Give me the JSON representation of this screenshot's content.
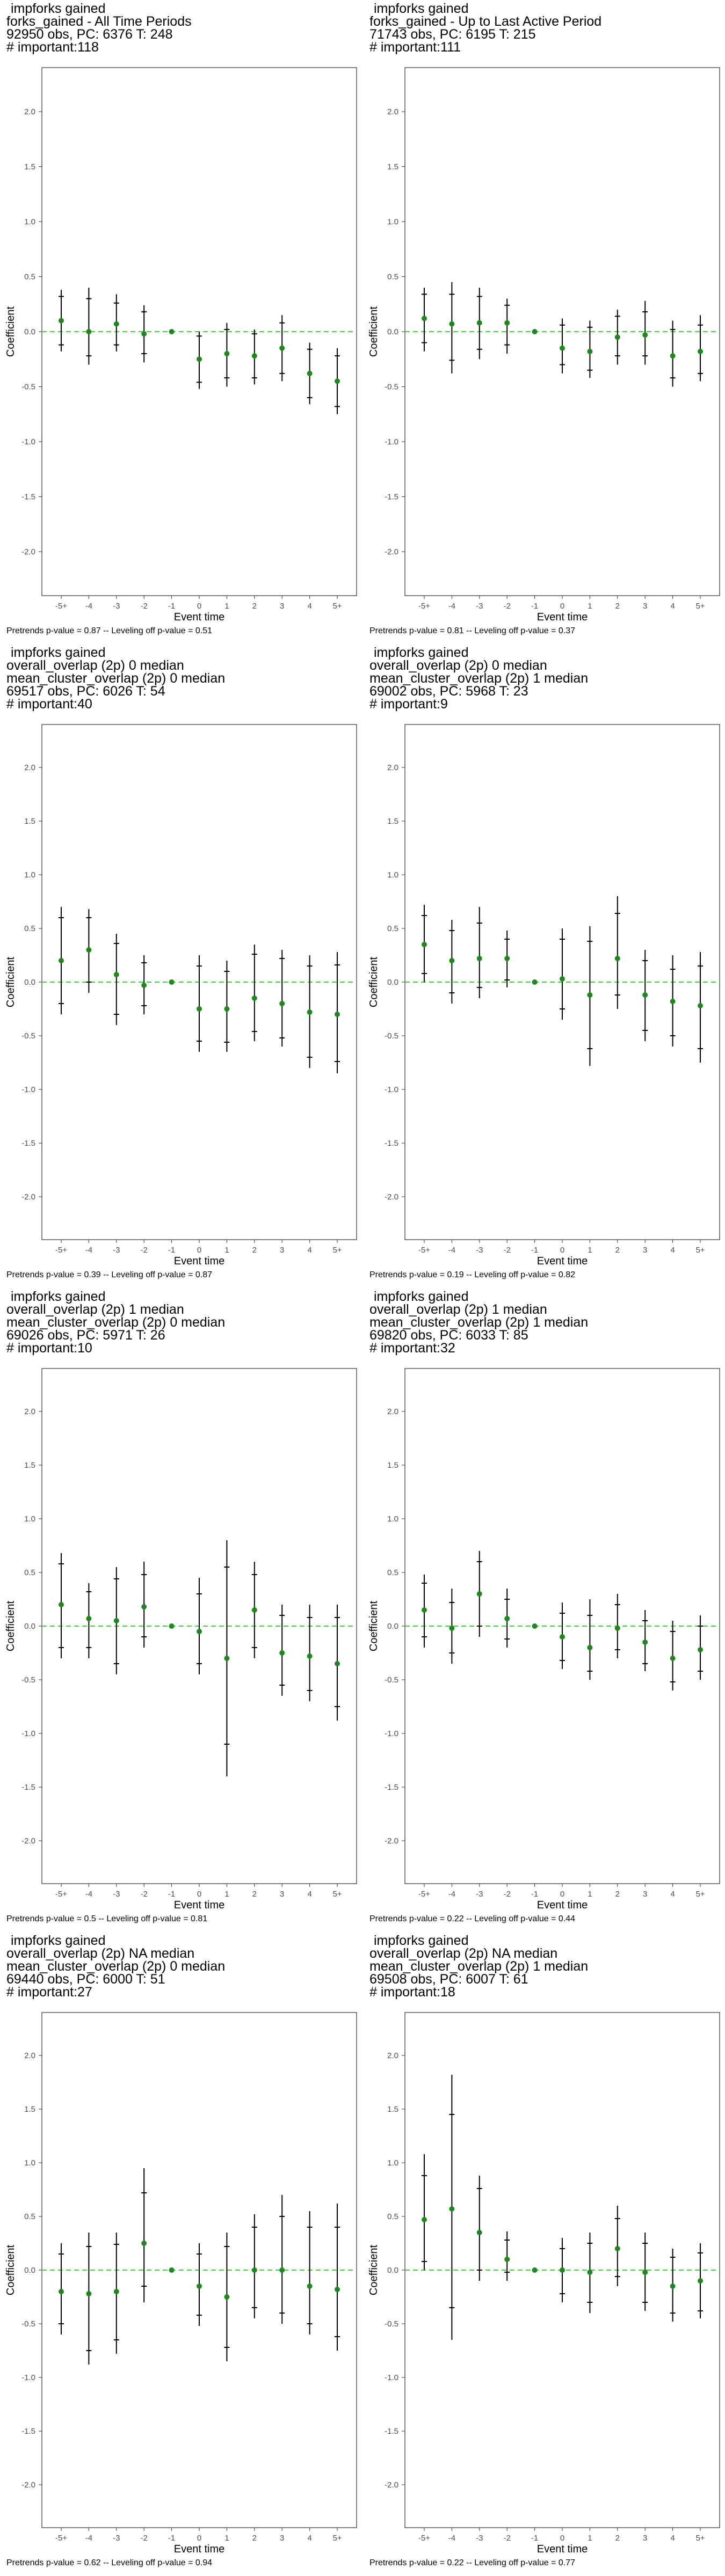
{
  "chart_data": [
    {
      "type": "scatter",
      "title_lines": [
        "impforks gained",
        "forks_gained - All Time Periods",
        "92950 obs, PC: 6376 T: 248",
        "# important:118"
      ],
      "xlabel": "Event time",
      "ylabel": "Coefficient",
      "categories": [
        "-5+",
        "-4",
        "-3",
        "-2",
        "-1",
        "0",
        "1",
        "2",
        "3",
        "4",
        "5+"
      ],
      "ylim": [
        -2.4,
        2.4
      ],
      "yticks": [
        -2.0,
        -1.5,
        -1.0,
        -0.5,
        0.0,
        0.5,
        1.0,
        1.5,
        2.0
      ],
      "estimate": [
        0.1,
        0.0,
        0.07,
        -0.02,
        0.0,
        -0.25,
        -0.2,
        -0.22,
        -0.15,
        -0.38,
        -0.45
      ],
      "ci95": [
        [
          -0.18,
          0.38
        ],
        [
          -0.3,
          0.4
        ],
        [
          -0.18,
          0.34
        ],
        [
          -0.28,
          0.24
        ],
        [
          0.0,
          0.0
        ],
        [
          -0.52,
          0.0
        ],
        [
          -0.5,
          0.08
        ],
        [
          -0.48,
          0.02
        ],
        [
          -0.45,
          0.15
        ],
        [
          -0.66,
          -0.1
        ],
        [
          -0.75,
          -0.15
        ]
      ],
      "ci90": [
        [
          -0.12,
          0.32
        ],
        [
          -0.22,
          0.3
        ],
        [
          -0.12,
          0.26
        ],
        [
          -0.2,
          0.18
        ],
        [
          0.0,
          0.0
        ],
        [
          -0.46,
          -0.04
        ],
        [
          -0.42,
          0.02
        ],
        [
          -0.42,
          -0.02
        ],
        [
          -0.38,
          0.08
        ],
        [
          -0.6,
          -0.16
        ],
        [
          -0.68,
          -0.22
        ]
      ],
      "footnote": "Pretrends p-value = 0.87 -- Leveling off p-value = 0.51"
    },
    {
      "type": "scatter",
      "title_lines": [
        "impforks gained",
        "forks_gained - Up to Last Active Period",
        "71743 obs, PC: 6195 T: 215",
        "# important:111"
      ],
      "xlabel": "Event time",
      "ylabel": "Coefficient",
      "categories": [
        "-5+",
        "-4",
        "-3",
        "-2",
        "-1",
        "0",
        "1",
        "2",
        "3",
        "4",
        "5+"
      ],
      "ylim": [
        -2.4,
        2.4
      ],
      "yticks": [
        -2.0,
        -1.5,
        -1.0,
        -0.5,
        0.0,
        0.5,
        1.0,
        1.5,
        2.0
      ],
      "estimate": [
        0.12,
        0.07,
        0.08,
        0.08,
        0.0,
        -0.15,
        -0.18,
        -0.05,
        -0.03,
        -0.22,
        -0.18
      ],
      "ci95": [
        [
          -0.18,
          0.4
        ],
        [
          -0.38,
          0.45
        ],
        [
          -0.25,
          0.4
        ],
        [
          -0.2,
          0.3
        ],
        [
          0.0,
          0.0
        ],
        [
          -0.38,
          0.12
        ],
        [
          -0.42,
          0.1
        ],
        [
          -0.3,
          0.2
        ],
        [
          -0.3,
          0.28
        ],
        [
          -0.5,
          0.1
        ],
        [
          -0.45,
          0.15
        ]
      ],
      "ci90": [
        [
          -0.1,
          0.34
        ],
        [
          -0.26,
          0.34
        ],
        [
          -0.16,
          0.32
        ],
        [
          -0.12,
          0.24
        ],
        [
          0.0,
          0.0
        ],
        [
          -0.3,
          0.06
        ],
        [
          -0.35,
          0.04
        ],
        [
          -0.22,
          0.14
        ],
        [
          -0.22,
          0.18
        ],
        [
          -0.42,
          0.02
        ],
        [
          -0.38,
          0.06
        ]
      ],
      "footnote": "Pretrends p-value = 0.81 -- Leveling off p-value = 0.37"
    },
    {
      "type": "scatter",
      "title_lines": [
        "impforks gained",
        "overall_overlap (2p) 0 median",
        "mean_cluster_overlap (2p) 0 median",
        "69517 obs, PC: 6026 T: 54",
        "# important:40"
      ],
      "xlabel": "Event time",
      "ylabel": "Coefficient",
      "categories": [
        "-5+",
        "-4",
        "-3",
        "-2",
        "-1",
        "0",
        "1",
        "2",
        "3",
        "4",
        "5+"
      ],
      "ylim": [
        -2.4,
        2.4
      ],
      "yticks": [
        -2.0,
        -1.5,
        -1.0,
        -0.5,
        0.0,
        0.5,
        1.0,
        1.5,
        2.0
      ],
      "estimate": [
        0.2,
        0.3,
        0.07,
        -0.03,
        0.0,
        -0.25,
        -0.25,
        -0.15,
        -0.2,
        -0.28,
        -0.3
      ],
      "ci95": [
        [
          -0.3,
          0.7
        ],
        [
          -0.1,
          0.68
        ],
        [
          -0.4,
          0.45
        ],
        [
          -0.3,
          0.25
        ],
        [
          0.0,
          0.0
        ],
        [
          -0.65,
          0.25
        ],
        [
          -0.65,
          0.2
        ],
        [
          -0.55,
          0.35
        ],
        [
          -0.6,
          0.3
        ],
        [
          -0.8,
          0.25
        ],
        [
          -0.85,
          0.28
        ]
      ],
      "ci90": [
        [
          -0.2,
          0.6
        ],
        [
          0.0,
          0.6
        ],
        [
          -0.3,
          0.36
        ],
        [
          -0.22,
          0.18
        ],
        [
          0.0,
          0.0
        ],
        [
          -0.55,
          0.15
        ],
        [
          -0.56,
          0.1
        ],
        [
          -0.46,
          0.26
        ],
        [
          -0.52,
          0.22
        ],
        [
          -0.7,
          0.15
        ],
        [
          -0.74,
          0.16
        ]
      ],
      "footnote": "Pretrends p-value = 0.39 -- Leveling off p-value = 0.87"
    },
    {
      "type": "scatter",
      "title_lines": [
        "impforks gained",
        "overall_overlap (2p) 0 median",
        "mean_cluster_overlap (2p) 1 median",
        "69002 obs, PC: 5968 T: 23",
        "# important:9"
      ],
      "xlabel": "Event time",
      "ylabel": "Coefficient",
      "categories": [
        "-5+",
        "-4",
        "-3",
        "-2",
        "-1",
        "0",
        "1",
        "2",
        "3",
        "4",
        "5+"
      ],
      "ylim": [
        -2.4,
        2.4
      ],
      "yticks": [
        -2.0,
        -1.5,
        -1.0,
        -0.5,
        0.0,
        0.5,
        1.0,
        1.5,
        2.0
      ],
      "estimate": [
        0.35,
        0.2,
        0.22,
        0.22,
        0.0,
        0.03,
        -0.12,
        0.22,
        -0.12,
        -0.18,
        -0.22
      ],
      "ci95": [
        [
          0.0,
          0.72
        ],
        [
          -0.2,
          0.58
        ],
        [
          -0.15,
          0.7
        ],
        [
          -0.05,
          0.48
        ],
        [
          0.0,
          0.0
        ],
        [
          -0.35,
          0.5
        ],
        [
          -0.78,
          0.52
        ],
        [
          -0.25,
          0.8
        ],
        [
          -0.55,
          0.3
        ],
        [
          -0.6,
          0.25
        ],
        [
          -0.75,
          0.28
        ]
      ],
      "ci90": [
        [
          0.08,
          0.62
        ],
        [
          -0.1,
          0.48
        ],
        [
          -0.05,
          0.55
        ],
        [
          0.02,
          0.4
        ],
        [
          0.0,
          0.0
        ],
        [
          -0.25,
          0.4
        ],
        [
          -0.62,
          0.38
        ],
        [
          -0.12,
          0.64
        ],
        [
          -0.45,
          0.2
        ],
        [
          -0.5,
          0.12
        ],
        [
          -0.62,
          0.15
        ]
      ],
      "footnote": "Pretrends p-value = 0.19 -- Leveling off p-value = 0.82"
    },
    {
      "type": "scatter",
      "title_lines": [
        "impforks gained",
        "overall_overlap (2p) 1 median",
        "mean_cluster_overlap (2p) 0 median",
        "69026 obs, PC: 5971 T: 26",
        "# important:10"
      ],
      "xlabel": "Event time",
      "ylabel": "Coefficient",
      "categories": [
        "-5+",
        "-4",
        "-3",
        "-2",
        "-1",
        "0",
        "1",
        "2",
        "3",
        "4",
        "5+"
      ],
      "ylim": [
        -2.4,
        2.4
      ],
      "yticks": [
        -2.0,
        -1.5,
        -1.0,
        -0.5,
        0.0,
        0.5,
        1.0,
        1.5,
        2.0
      ],
      "estimate": [
        0.2,
        0.07,
        0.05,
        0.18,
        0.0,
        -0.05,
        -0.3,
        0.15,
        -0.25,
        -0.28,
        -0.35
      ],
      "ci95": [
        [
          -0.3,
          0.68
        ],
        [
          -0.3,
          0.4
        ],
        [
          -0.45,
          0.55
        ],
        [
          -0.2,
          0.6
        ],
        [
          0.0,
          0.0
        ],
        [
          -0.45,
          0.45
        ],
        [
          -1.4,
          0.8
        ],
        [
          -0.3,
          0.6
        ],
        [
          -0.65,
          0.2
        ],
        [
          -0.7,
          0.2
        ],
        [
          -0.88,
          0.2
        ]
      ],
      "ci90": [
        [
          -0.2,
          0.58
        ],
        [
          -0.2,
          0.32
        ],
        [
          -0.35,
          0.44
        ],
        [
          -0.1,
          0.48
        ],
        [
          0.0,
          0.0
        ],
        [
          -0.35,
          0.3
        ],
        [
          -1.1,
          0.55
        ],
        [
          -0.2,
          0.48
        ],
        [
          -0.55,
          0.1
        ],
        [
          -0.6,
          0.08
        ],
        [
          -0.75,
          0.08
        ]
      ],
      "footnote": "Pretrends p-value = 0.5 -- Leveling off p-value = 0.81"
    },
    {
      "type": "scatter",
      "title_lines": [
        "impforks gained",
        "overall_overlap (2p) 1 median",
        "mean_cluster_overlap (2p) 1 median",
        "69820 obs, PC: 6033 T: 85",
        "# important:32"
      ],
      "xlabel": "Event time",
      "ylabel": "Coefficient",
      "categories": [
        "-5+",
        "-4",
        "-3",
        "-2",
        "-1",
        "0",
        "1",
        "2",
        "3",
        "4",
        "5+"
      ],
      "ylim": [
        -2.4,
        2.4
      ],
      "yticks": [
        -2.0,
        -1.5,
        -1.0,
        -0.5,
        0.0,
        0.5,
        1.0,
        1.5,
        2.0
      ],
      "estimate": [
        0.15,
        -0.02,
        0.3,
        0.07,
        0.0,
        -0.1,
        -0.2,
        -0.02,
        -0.15,
        -0.3,
        -0.22
      ],
      "ci95": [
        [
          -0.2,
          0.48
        ],
        [
          -0.35,
          0.35
        ],
        [
          -0.1,
          0.7
        ],
        [
          -0.2,
          0.35
        ],
        [
          0.0,
          0.0
        ],
        [
          -0.4,
          0.22
        ],
        [
          -0.5,
          0.25
        ],
        [
          -0.3,
          0.3
        ],
        [
          -0.42,
          0.15
        ],
        [
          -0.6,
          0.05
        ],
        [
          -0.5,
          0.1
        ]
      ],
      "ci90": [
        [
          -0.1,
          0.4
        ],
        [
          -0.25,
          0.22
        ],
        [
          0.0,
          0.6
        ],
        [
          -0.12,
          0.25
        ],
        [
          0.0,
          0.0
        ],
        [
          -0.32,
          0.12
        ],
        [
          -0.42,
          0.1
        ],
        [
          -0.22,
          0.2
        ],
        [
          -0.35,
          0.05
        ],
        [
          -0.52,
          -0.05
        ],
        [
          -0.42,
          0.0
        ]
      ],
      "footnote": "Pretrends p-value = 0.22 -- Leveling off p-value = 0.44"
    },
    {
      "type": "scatter",
      "title_lines": [
        "impforks gained",
        "overall_overlap (2p) NA median",
        "mean_cluster_overlap (2p) 0 median",
        "69440 obs, PC: 6000 T: 51",
        "# important:27"
      ],
      "xlabel": "Event time",
      "ylabel": "Coefficient",
      "categories": [
        "-5+",
        "-4",
        "-3",
        "-2",
        "-1",
        "0",
        "1",
        "2",
        "3",
        "4",
        "5+"
      ],
      "ylim": [
        -2.4,
        2.4
      ],
      "yticks": [
        -2.0,
        -1.5,
        -1.0,
        -0.5,
        0.0,
        0.5,
        1.0,
        1.5,
        2.0
      ],
      "estimate": [
        -0.2,
        -0.22,
        -0.2,
        0.25,
        0.0,
        -0.15,
        -0.25,
        0.0,
        0.0,
        -0.15,
        -0.18
      ],
      "ci95": [
        [
          -0.6,
          0.25
        ],
        [
          -0.88,
          0.35
        ],
        [
          -0.78,
          0.35
        ],
        [
          -0.3,
          0.95
        ],
        [
          0.0,
          0.0
        ],
        [
          -0.52,
          0.25
        ],
        [
          -0.85,
          0.35
        ],
        [
          -0.45,
          0.52
        ],
        [
          -0.5,
          0.7
        ],
        [
          -0.6,
          0.55
        ],
        [
          -0.75,
          0.62
        ]
      ],
      "ci90": [
        [
          -0.5,
          0.15
        ],
        [
          -0.75,
          0.22
        ],
        [
          -0.65,
          0.24
        ],
        [
          -0.15,
          0.72
        ],
        [
          0.0,
          0.0
        ],
        [
          -0.42,
          0.15
        ],
        [
          -0.72,
          0.22
        ],
        [
          -0.35,
          0.4
        ],
        [
          -0.4,
          0.5
        ],
        [
          -0.5,
          0.4
        ],
        [
          -0.62,
          0.4
        ]
      ],
      "footnote": "Pretrends p-value = 0.62 -- Leveling off p-value = 0.94"
    },
    {
      "type": "scatter",
      "title_lines": [
        "impforks gained",
        "overall_overlap (2p) NA median",
        "mean_cluster_overlap (2p) 1 median",
        "69508 obs, PC: 6007 T: 61",
        "# important:18"
      ],
      "xlabel": "Event time",
      "ylabel": "Coefficient",
      "categories": [
        "-5+",
        "-4",
        "-3",
        "-2",
        "-1",
        "0",
        "1",
        "2",
        "3",
        "4",
        "5+"
      ],
      "ylim": [
        -2.4,
        2.4
      ],
      "yticks": [
        -2.0,
        -1.5,
        -1.0,
        -0.5,
        0.0,
        0.5,
        1.0,
        1.5,
        2.0
      ],
      "estimate": [
        0.47,
        0.57,
        0.35,
        0.1,
        0.0,
        0.0,
        -0.02,
        0.2,
        -0.02,
        -0.15,
        -0.1
      ],
      "ci95": [
        [
          0.0,
          1.08
        ],
        [
          -0.65,
          1.82
        ],
        [
          -0.1,
          0.88
        ],
        [
          -0.1,
          0.36
        ],
        [
          0.0,
          0.0
        ],
        [
          -0.3,
          0.3
        ],
        [
          -0.4,
          0.35
        ],
        [
          -0.15,
          0.6
        ],
        [
          -0.38,
          0.35
        ],
        [
          -0.48,
          0.2
        ],
        [
          -0.45,
          0.25
        ]
      ],
      "ci90": [
        [
          0.08,
          0.88
        ],
        [
          -0.35,
          1.45
        ],
        [
          0.0,
          0.76
        ],
        [
          -0.02,
          0.28
        ],
        [
          0.0,
          0.0
        ],
        [
          -0.22,
          0.2
        ],
        [
          -0.3,
          0.25
        ],
        [
          -0.06,
          0.48
        ],
        [
          -0.3,
          0.25
        ],
        [
          -0.4,
          0.12
        ],
        [
          -0.38,
          0.16
        ]
      ],
      "footnote": "Pretrends p-value = 0.22 -- Leveling off p-value = 0.77"
    }
  ],
  "colors": {
    "point": "#1a8a1a",
    "refline": "#33dd33",
    "interval": "#000000",
    "axis_text": "#4d4d4d"
  }
}
